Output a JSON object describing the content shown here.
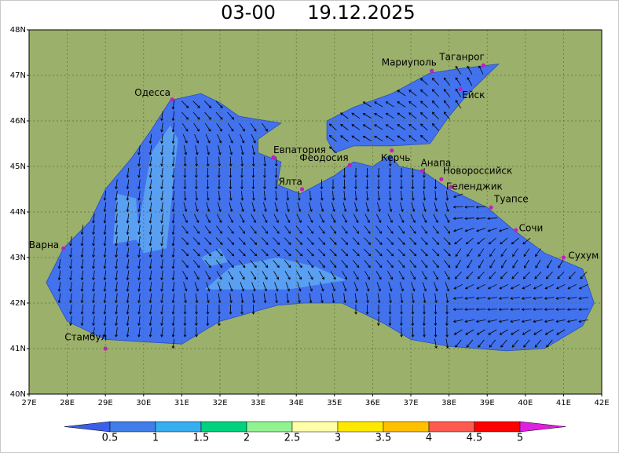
{
  "header": {
    "time": "03-00",
    "date": "19.12.2025"
  },
  "map": {
    "lat_ticks": [
      "48N",
      "47N",
      "46N",
      "45N",
      "44N",
      "43N",
      "42N",
      "41N",
      "40N"
    ],
    "lon_ticks": [
      "27E",
      "28E",
      "29E",
      "30E",
      "31E",
      "32E",
      "33E",
      "34E",
      "35E",
      "36E",
      "37E",
      "38E",
      "39E",
      "40E",
      "41E",
      "42E"
    ],
    "land_color": "#9bb06a",
    "sea_color": "#4272ee",
    "patch_color": "#5ca4f2",
    "cities": [
      {
        "label": "Одесса"
      },
      {
        "label": "Мариуполь"
      },
      {
        "label": "Таганрог"
      },
      {
        "label": "Ейск"
      },
      {
        "label": "Евпатория"
      },
      {
        "label": "Феодосия"
      },
      {
        "label": "Керчь"
      },
      {
        "label": "Анапа"
      },
      {
        "label": "Ялта"
      },
      {
        "label": "Новороссийск"
      },
      {
        "label": "Геленджик"
      },
      {
        "label": "Туапсе"
      },
      {
        "label": "Сочи"
      },
      {
        "label": "Сухум"
      },
      {
        "label": "Варна"
      },
      {
        "label": "Стамбул"
      }
    ]
  },
  "colorbar": {
    "ticks": [
      0.5,
      1,
      1.5,
      2,
      2.5,
      3,
      3.5,
      4,
      4.5,
      5
    ],
    "colors": [
      "#3b5fe8",
      "#3f7ee8",
      "#36aef0",
      "#00d27e",
      "#90f290",
      "#ffffa8",
      "#ffe800",
      "#ffc000",
      "#ff5a50",
      "#ff0000",
      "#e020e0"
    ]
  }
}
